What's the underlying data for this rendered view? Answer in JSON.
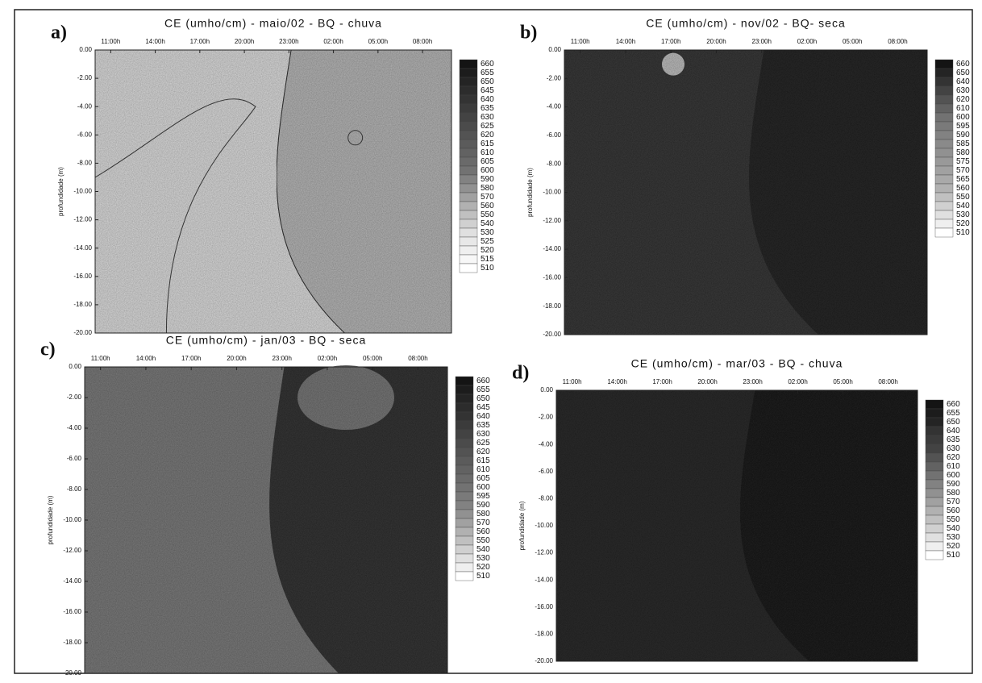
{
  "chart_data": [
    {
      "type": "contour",
      "label": "a)",
      "title": "CE (umho/cm) - maio/02 - BQ - chuva",
      "ylabel": "profundidade (m)",
      "categories": [
        "11:00h",
        "14:00h",
        "17:00h",
        "20:00h",
        "23:00h",
        "02:00h",
        "05:00h",
        "08:00h"
      ],
      "ylim": [
        -20,
        0
      ],
      "yticks": [
        {
          "value": 0,
          "label": "0.00"
        },
        {
          "value": -2,
          "label": "-2.00"
        },
        {
          "value": -4,
          "label": "-4.00"
        },
        {
          "value": -6,
          "label": "-6.00"
        },
        {
          "value": -8,
          "label": "-8.00"
        },
        {
          "value": -10,
          "label": "-10.00"
        },
        {
          "value": -12,
          "label": "-12.00"
        },
        {
          "value": -14,
          "label": "-14.00"
        },
        {
          "value": -16,
          "label": "-16.00"
        },
        {
          "value": -18,
          "label": "-18.00"
        },
        {
          "value": -20,
          "label": "-20.00"
        }
      ],
      "levels": [
        660,
        655,
        650,
        645,
        640,
        635,
        630,
        625,
        620,
        615,
        610,
        605,
        600,
        590,
        580,
        570,
        560,
        550,
        540,
        530,
        525,
        520,
        515,
        510
      ]
    },
    {
      "type": "contour",
      "label": "b)",
      "title": "CE (umho/cm) - nov/02 - BQ- seca",
      "ylabel": "profundidade (m)",
      "categories": [
        "11:00h",
        "14:00h",
        "17:00h",
        "20:00h",
        "23:00h",
        "02:00h",
        "05:00h",
        "08:00h"
      ],
      "ylim": [
        -20,
        0
      ],
      "yticks": [
        {
          "value": 0,
          "label": "0.00"
        },
        {
          "value": -2,
          "label": "-2.00"
        },
        {
          "value": -4,
          "label": "-4.00"
        },
        {
          "value": -6,
          "label": "-6.00"
        },
        {
          "value": -8,
          "label": "-8.00"
        },
        {
          "value": -10,
          "label": "-10.00"
        },
        {
          "value": -12,
          "label": "-12.00"
        },
        {
          "value": -14,
          "label": "-14.00"
        },
        {
          "value": -16,
          "label": "-16.00"
        },
        {
          "value": -18,
          "label": "-18.00"
        },
        {
          "value": -20,
          "label": "-20.00"
        }
      ],
      "levels": [
        660,
        650,
        640,
        630,
        620,
        610,
        600,
        595,
        590,
        585,
        580,
        575,
        570,
        565,
        560,
        550,
        540,
        530,
        520,
        510
      ]
    },
    {
      "type": "contour",
      "label": "c)",
      "title": "CE (umho/cm) - jan/03 - BQ - seca",
      "ylabel": "profundidade (m)",
      "categories": [
        "11:00h",
        "14:00h",
        "17:00h",
        "20:00h",
        "23:00h",
        "02:00h",
        "05:00h",
        "08:00h"
      ],
      "ylim": [
        -20,
        0
      ],
      "yticks": [
        {
          "value": 0,
          "label": "0.00"
        },
        {
          "value": -2,
          "label": "-2.00"
        },
        {
          "value": -4,
          "label": "-4.00"
        },
        {
          "value": -6,
          "label": "-6.00"
        },
        {
          "value": -8,
          "label": "-8.00"
        },
        {
          "value": -10,
          "label": "-10.00"
        },
        {
          "value": -12,
          "label": "-12.00"
        },
        {
          "value": -14,
          "label": "-14.00"
        },
        {
          "value": -16,
          "label": "-16.00"
        },
        {
          "value": -18,
          "label": "-18.00"
        },
        {
          "value": -20,
          "label": "-20.00"
        }
      ],
      "levels": [
        660,
        655,
        650,
        645,
        640,
        635,
        630,
        625,
        620,
        615,
        610,
        605,
        600,
        595,
        590,
        580,
        570,
        560,
        550,
        540,
        530,
        520,
        510
      ]
    },
    {
      "type": "contour",
      "label": "d)",
      "title": "CE (umho/cm) - mar/03 - BQ - chuva",
      "ylabel": "profundidade (m)",
      "categories": [
        "11:00h",
        "14:00h",
        "17:00h",
        "20:00h",
        "23:00h",
        "02:00h",
        "05:00h",
        "08:00h"
      ],
      "ylim": [
        -20,
        0
      ],
      "yticks": [
        {
          "value": 0,
          "label": "0.00"
        },
        {
          "value": -2,
          "label": "-2.00"
        },
        {
          "value": -4,
          "label": "-4.00"
        },
        {
          "value": -6,
          "label": "-6.00"
        },
        {
          "value": -8,
          "label": "-8.00"
        },
        {
          "value": -10,
          "label": "-10.00"
        },
        {
          "value": -12,
          "label": "-12.00"
        },
        {
          "value": -14,
          "label": "-14.00"
        },
        {
          "value": -16,
          "label": "-16.00"
        },
        {
          "value": -18,
          "label": "-18.00"
        },
        {
          "value": -20,
          "label": "-20.00"
        }
      ],
      "levels": [
        660,
        655,
        650,
        640,
        635,
        630,
        620,
        610,
        600,
        590,
        580,
        570,
        560,
        550,
        540,
        530,
        520,
        510
      ]
    }
  ]
}
